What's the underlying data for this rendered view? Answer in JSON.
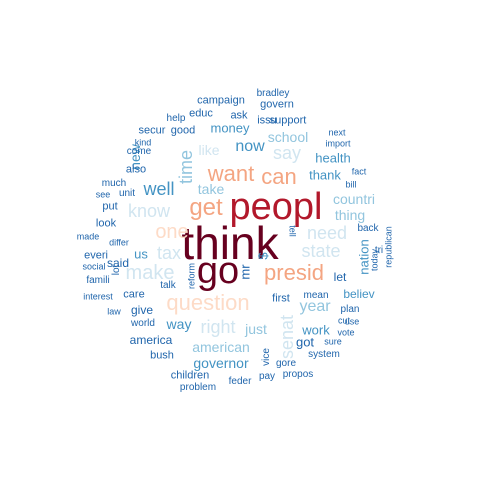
{
  "palette": {
    "darkest": "#67001f",
    "dark_red": "#b2182b",
    "red": "#d6604d",
    "salmon": "#f4a582",
    "peach": "#fddbc7",
    "light_blue": "#d1e5f0",
    "sky": "#92c5de",
    "blue": "#4393c3",
    "dark_blue": "#2166ac"
  },
  "words": {
    "think": "think",
    "go": "go",
    "peopl": "peopl",
    "presid": "presid",
    "get": "get",
    "want": "want",
    "can": "can",
    "question": "question",
    "one": "one",
    "make": "make",
    "tax": "tax",
    "know": "know",
    "time": "time",
    "well": "well",
    "right": "right",
    "state": "state",
    "need": "need",
    "senat": "senat",
    "say": "say",
    "year": "year",
    "american": "american",
    "governor": "governor",
    "countri": "countri",
    "thing": "thing",
    "school": "school",
    "now": "now",
    "like": "like",
    "money": "money",
    "new": "new",
    "take": "take",
    "us": "us",
    "way": "way",
    "just": "just",
    "nation": "nation",
    "work": "work",
    "thank": "thank",
    "health": "health",
    "believ": "believ",
    "let": "let",
    "mr": "mr",
    "dollar": "$",
    "said": "said",
    "give": "give",
    "america": "america",
    "got": "got",
    "first": "first",
    "support": "support",
    "govern": "govern",
    "campaign": "campaign",
    "educ": "educ",
    "ask": "ask",
    "issu": "issu",
    "help": "help",
    "good": "good",
    "secur": "secur",
    "kind": "kind",
    "come": "come",
    "also": "also",
    "much": "much",
    "see": "see",
    "unit": "unit",
    "put": "put",
    "look": "look",
    "made": "made",
    "differ": "differ",
    "everi": "everi",
    "social": "social",
    "famili": "famili",
    "lot": "lot",
    "interest": "interest",
    "care": "care",
    "law": "law",
    "world": "world",
    "talk": "talk",
    "reform": "reform",
    "bush": "bush",
    "children": "children",
    "problem": "problem",
    "feder": "feder",
    "vice": "vice",
    "gore": "gore",
    "pay": "pay",
    "propos": "propos",
    "system": "system",
    "sure": "sure",
    "use": "use",
    "plan": "plan",
    "mean": "mean",
    "vote": "vote",
    "cut": "cut",
    "tell": "tell",
    "tri": "tri",
    "back": "back",
    "today": "today",
    "republican": "republican",
    "bill": "bill",
    "fact": "fact",
    "next": "next",
    "import": "import",
    "bradley": "bradley"
  }
}
